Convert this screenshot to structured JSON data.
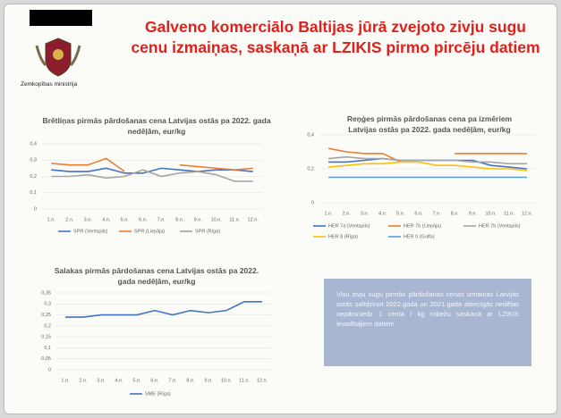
{
  "logo_text": "Zemkopības ministrija",
  "title": "Galveno komerciālo Baltijas jūrā zvejoto zivju sugu cenu izmaiņas, saskaņā ar LZIKIS pirmo pircēju datiem",
  "note": "Visu zivju sugu pirmās pārdošanas cenas izmaiņas Latvijas ostās salīdzinot 2022.gada un 2021.gada attiecīgās nedēļas nepārsniedz 1 centa / kg robežu saskaņā ar LZIKIS ievadītajiem datiem",
  "chart_data": [
    {
      "type": "line",
      "title": "Brētliņas pirmās pārdošanas cena Latvijas ostās pa 2022. gada nedēļām, eur/kg",
      "categories": [
        "1.n.",
        "2.n.",
        "3.n.",
        "4.n.",
        "5.n.",
        "6.n.",
        "7.n.",
        "8.n.",
        "9.n.",
        "10.n.",
        "11.n.",
        "12.n."
      ],
      "series": [
        {
          "name": "SPR (Ventspils)",
          "color": "#4472c4",
          "values": [
            0.24,
            0.23,
            0.23,
            0.25,
            0.22,
            0.22,
            0.25,
            0.24,
            0.23,
            0.24,
            0.24,
            0.23
          ]
        },
        {
          "name": "SPR (Liepāja)",
          "color": "#ed7d31",
          "values": [
            0.28,
            0.27,
            0.27,
            0.31,
            0.23,
            null,
            null,
            0.27,
            0.26,
            0.25,
            0.24,
            0.25
          ]
        },
        {
          "name": "SPR (Rīga)",
          "color": "#a5a5a5",
          "values": [
            0.2,
            0.2,
            0.21,
            0.19,
            0.2,
            0.24,
            0.2,
            0.22,
            0.23,
            0.21,
            0.17,
            0.17
          ]
        }
      ],
      "ylim": [
        0,
        0.4
      ],
      "yticks": [
        0,
        {
          "value": 0.1,
          "label": "0,1"
        },
        {
          "value": 0.2,
          "label": "0,2"
        },
        {
          "value": 0.3,
          "label": "0,3"
        },
        {
          "value": 0.4,
          "label": "0,4"
        }
      ],
      "grid": true,
      "legend": "bottom"
    },
    {
      "type": "line",
      "title": "Reņģes pirmās pārdošanas cena pa izmēriem Latvijas ostās pa 2022. gada nedēļām, eur/kg",
      "categories": [
        "1.n.",
        "2.n.",
        "3.n.",
        "4.n.",
        "5.n.",
        "6.n.",
        "7.n.",
        "8.n.",
        "9.n.",
        "10.n.",
        "11.n.",
        "12.n."
      ],
      "series": [
        {
          "name": "HER 7a (Ventspils)",
          "color": "#4472c4",
          "values": [
            0.24,
            0.24,
            0.25,
            0.26,
            0.25,
            0.25,
            0.25,
            0.25,
            0.25,
            0.22,
            0.21,
            0.2
          ]
        },
        {
          "name": "HER 7b (Liepāja)",
          "color": "#ed7d31",
          "values": [
            0.32,
            0.3,
            0.29,
            0.29,
            0.24,
            null,
            null,
            0.29,
            0.29,
            0.29,
            0.29,
            0.29
          ]
        },
        {
          "name": "HER 7b (Ventspils)",
          "color": "#a5a5a5",
          "values": [
            0.26,
            0.27,
            0.26,
            0.26,
            0.25,
            0.25,
            0.25,
            0.25,
            0.24,
            0.24,
            0.23,
            0.23
          ]
        },
        {
          "name": "HER 8 (Rīga)",
          "color": "#ffc000",
          "values": [
            0.21,
            0.22,
            0.23,
            0.23,
            0.24,
            0.24,
            0.22,
            0.22,
            0.21,
            0.2,
            0.2,
            0.19
          ]
        },
        {
          "name": "HER 0 (Gulfa)",
          "color": "#5b9bd5",
          "values": [
            0.15,
            0.15,
            0.15,
            0.15,
            0.15,
            0.15,
            0.15,
            0.15,
            0.15,
            0.15,
            0.15,
            0.15
          ]
        }
      ],
      "ylim": [
        0,
        0.4
      ],
      "yticks": [
        0,
        {
          "value": 0.2,
          "label": "0,2"
        },
        {
          "value": 0.4,
          "label": "0,4"
        }
      ],
      "grid": true,
      "legend": "bottom"
    },
    {
      "type": "line",
      "title": "Salakas pirmās pārdošanas cena Latvijas ostās pa 2022. gada nedēļām, eur/kg",
      "categories": [
        "1.n.",
        "2.n.",
        "3.n.",
        "4.n.",
        "5.n.",
        "6.n.",
        "7.n.",
        "8.n.",
        "9.n.",
        "10.n.",
        "11.n.",
        "12.n."
      ],
      "series": [
        {
          "name": "SME (Rīga)",
          "color": "#4472c4",
          "values": [
            0.24,
            0.24,
            0.25,
            0.25,
            0.25,
            0.27,
            0.25,
            0.27,
            0.26,
            0.27,
            0.31,
            0.31
          ]
        }
      ],
      "ylim": [
        0,
        0.35
      ],
      "yticks": [
        0,
        {
          "value": 0.05,
          "label": "0,05"
        },
        {
          "value": 0.1,
          "label": "0,1"
        },
        {
          "value": 0.15,
          "label": "0,15"
        },
        {
          "value": 0.2,
          "label": "0,2"
        },
        {
          "value": 0.25,
          "label": "0,25"
        },
        {
          "value": 0.3,
          "label": "0,3"
        },
        {
          "value": 0.35,
          "label": "0,35"
        }
      ],
      "grid": true,
      "legend": "bottom"
    }
  ]
}
